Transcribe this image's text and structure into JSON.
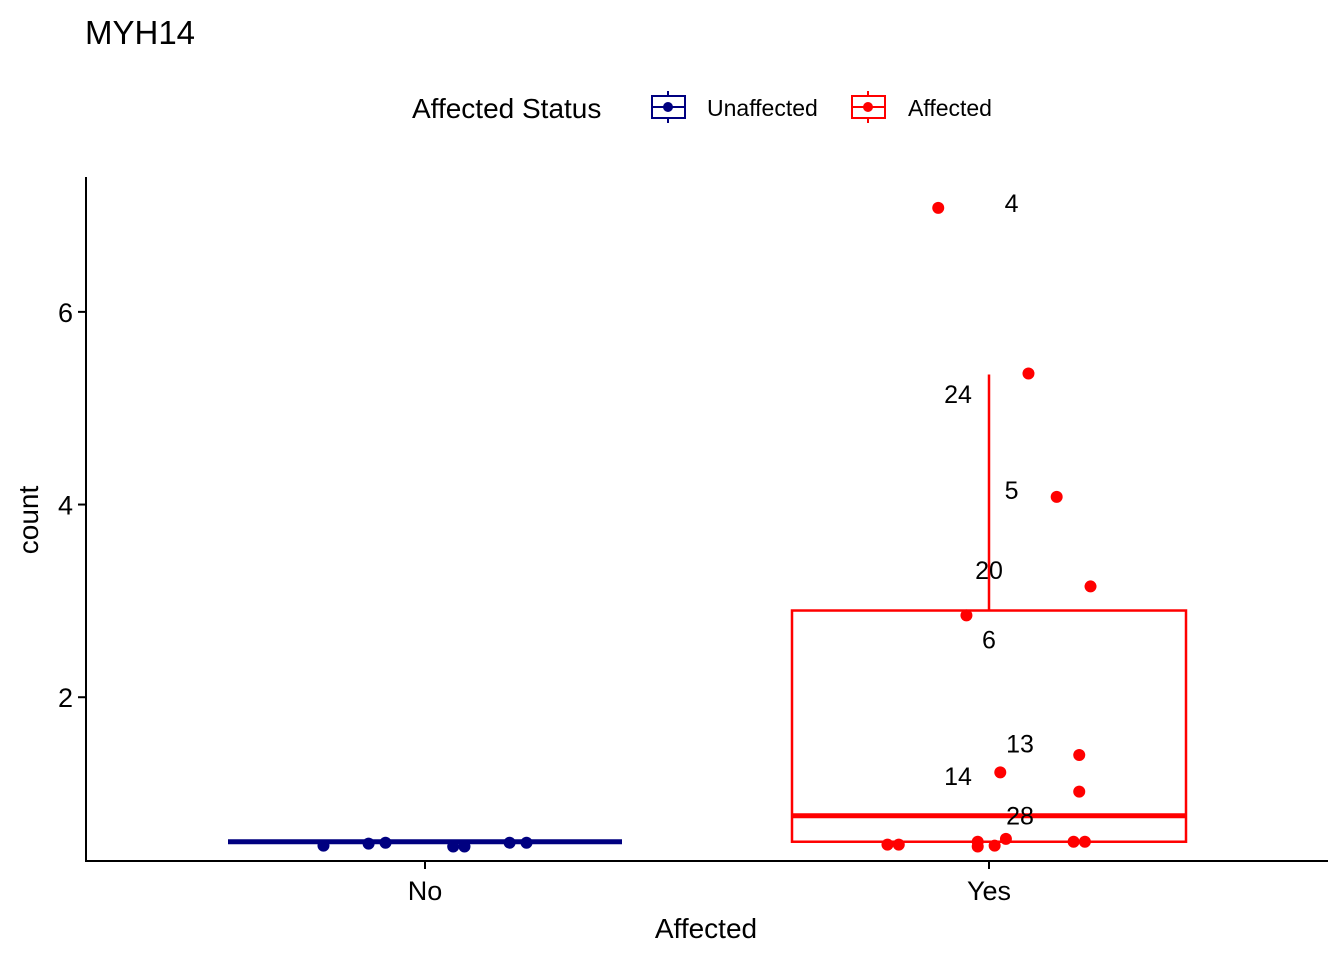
{
  "chart_data": {
    "type": "boxplot",
    "title": "MYH14",
    "xlabel": "Affected",
    "ylabel": "count",
    "categories": [
      "No",
      "Yes"
    ],
    "ylim": [
      0.3,
      7.4
    ],
    "yticks": [
      2,
      4,
      6
    ],
    "grid": false,
    "legend": {
      "title": "Affected Status",
      "position": "top",
      "entries": [
        {
          "label": "Unaffected",
          "color": "#000080"
        },
        {
          "label": "Affected",
          "color": "#ff0000"
        }
      ]
    },
    "series": [
      {
        "name": "Unaffected",
        "category": "No",
        "color": "#000080",
        "box": {
          "min": 0.5,
          "q1": 0.5,
          "median": 0.5,
          "q3": 0.5,
          "max": 0.5
        },
        "points": [
          {
            "jitter": -0.18,
            "y": 0.46
          },
          {
            "jitter": -0.1,
            "y": 0.48
          },
          {
            "jitter": -0.07,
            "y": 0.49
          },
          {
            "jitter": 0.05,
            "y": 0.45
          },
          {
            "jitter": 0.07,
            "y": 0.45
          },
          {
            "jitter": 0.15,
            "y": 0.49
          },
          {
            "jitter": 0.18,
            "y": 0.49
          }
        ]
      },
      {
        "name": "Affected",
        "category": "Yes",
        "color": "#ff0000",
        "box": {
          "min": 0.5,
          "q1": 0.5,
          "median": 0.77,
          "q3": 2.9,
          "max": 5.35
        },
        "points": [
          {
            "jitter": -0.09,
            "y": 7.08,
            "label": "4"
          },
          {
            "jitter": 0.07,
            "y": 5.36,
            "label": "24"
          },
          {
            "jitter": 0.12,
            "y": 4.08,
            "label": "5"
          },
          {
            "jitter": 0.18,
            "y": 3.15,
            "label": "20"
          },
          {
            "jitter": -0.04,
            "y": 2.85,
            "label": "6"
          },
          {
            "jitter": 0.16,
            "y": 1.4,
            "label": "13"
          },
          {
            "jitter": 0.02,
            "y": 1.22,
            "label": "14"
          },
          {
            "jitter": 0.16,
            "y": 1.02
          },
          {
            "jitter": 0.03,
            "y": 0.53,
            "label": "28"
          },
          {
            "jitter": -0.18,
            "y": 0.47
          },
          {
            "jitter": -0.16,
            "y": 0.47
          },
          {
            "jitter": -0.02,
            "y": 0.5
          },
          {
            "jitter": -0.02,
            "y": 0.45
          },
          {
            "jitter": 0.01,
            "y": 0.46
          },
          {
            "jitter": 0.15,
            "y": 0.5
          },
          {
            "jitter": 0.17,
            "y": 0.5
          }
        ],
        "labels": [
          {
            "text": "4",
            "dx": 0.04,
            "y": 7.13
          },
          {
            "text": "24",
            "dx": -0.055,
            "y": 5.15
          },
          {
            "text": "5",
            "dx": 0.04,
            "y": 4.15
          },
          {
            "text": "20",
            "dx": 0.0,
            "y": 3.32
          },
          {
            "text": "6",
            "dx": 0.0,
            "y": 2.6
          },
          {
            "text": "13",
            "dx": 0.055,
            "y": 1.52
          },
          {
            "text": "14",
            "dx": -0.055,
            "y": 1.18
          },
          {
            "text": "28",
            "dx": 0.055,
            "y": 0.77
          }
        ]
      }
    ]
  }
}
